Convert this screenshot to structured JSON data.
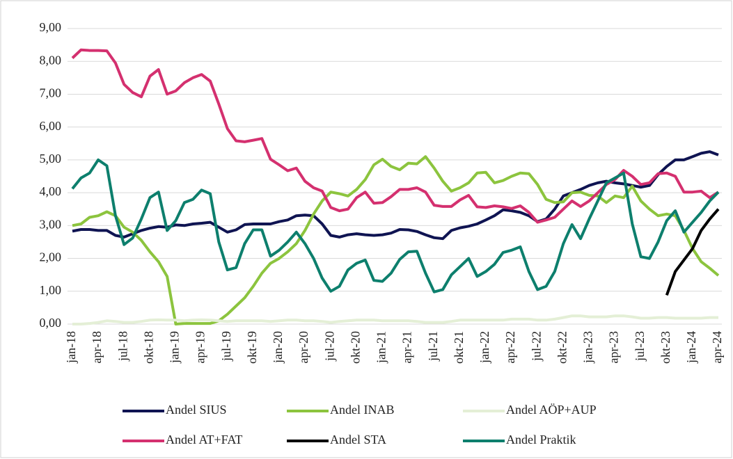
{
  "chart_data": {
    "type": "line",
    "categories": [
      "jan-18",
      null,
      null,
      "apr-18",
      null,
      null,
      "jul-18",
      null,
      null,
      "okt-18",
      null,
      null,
      "jan-19",
      null,
      null,
      "apr-19",
      null,
      null,
      "jul-19",
      null,
      null,
      "okt-19",
      null,
      null,
      "jan-20",
      null,
      null,
      "apr-20",
      null,
      null,
      "jul-20",
      null,
      null,
      "okt-20",
      null,
      null,
      "jan-21",
      null,
      null,
      "apr-21",
      null,
      null,
      "jul-21",
      null,
      null,
      "okt-21",
      null,
      null,
      "jan-22",
      null,
      null,
      "apr-22",
      null,
      null,
      "jul-22",
      null,
      null,
      "okt-22",
      null,
      null,
      "jan-23",
      null,
      null,
      "apr-23",
      null,
      null,
      "jul-23",
      null,
      null,
      "okt-23",
      null,
      null,
      "jan-24",
      null,
      null,
      "apr-24"
    ],
    "series": [
      {
        "name": "Andel SIUS",
        "color": "#0f1452",
        "values": [
          2.83,
          2.88,
          2.88,
          2.85,
          2.85,
          2.7,
          2.65,
          2.75,
          2.85,
          2.92,
          2.97,
          2.95,
          3.02,
          3.0,
          3.05,
          3.07,
          3.1,
          2.95,
          2.8,
          2.87,
          3.03,
          3.05,
          3.05,
          3.05,
          3.12,
          3.17,
          3.3,
          3.32,
          3.3,
          3.05,
          2.7,
          2.65,
          2.72,
          2.75,
          2.72,
          2.7,
          2.72,
          2.77,
          2.88,
          2.87,
          2.82,
          2.72,
          2.63,
          2.6,
          2.85,
          2.93,
          2.98,
          3.05,
          3.17,
          3.3,
          3.48,
          3.45,
          3.4,
          3.3,
          3.12,
          3.2,
          3.5,
          3.9,
          4.0,
          4.1,
          4.22,
          4.3,
          4.35,
          4.3,
          4.27,
          4.22,
          4.17,
          4.22,
          4.55,
          4.8,
          5.0,
          5.0,
          5.1,
          5.2,
          5.25,
          5.15
        ]
      },
      {
        "name": "Andel INAB",
        "color": "#8cc43e",
        "values": [
          3.0,
          3.05,
          3.25,
          3.3,
          3.42,
          3.3,
          2.95,
          2.8,
          2.55,
          2.2,
          1.9,
          1.45,
          0.0,
          0.02,
          0.02,
          0.02,
          0.02,
          0.1,
          0.3,
          0.55,
          0.8,
          1.15,
          1.55,
          1.85,
          2.0,
          2.2,
          2.45,
          2.85,
          3.35,
          3.75,
          4.02,
          3.97,
          3.9,
          4.1,
          4.4,
          4.85,
          5.02,
          4.8,
          4.7,
          4.9,
          4.88,
          5.1,
          4.75,
          4.35,
          4.05,
          4.15,
          4.3,
          4.6,
          4.62,
          4.3,
          4.37,
          4.5,
          4.6,
          4.58,
          4.25,
          3.8,
          3.7,
          3.72,
          4.0,
          4.02,
          3.92,
          3.9,
          3.7,
          3.9,
          3.85,
          4.2,
          3.75,
          3.5,
          3.3,
          3.35,
          3.3,
          2.85,
          2.3,
          1.9,
          1.7,
          1.48
        ]
      },
      {
        "name": "Andel AÖP+AUP",
        "color": "#e4efd6",
        "values": [
          0.0,
          0.0,
          0.02,
          0.05,
          0.1,
          0.08,
          0.05,
          0.05,
          0.08,
          0.12,
          0.13,
          0.12,
          0.12,
          0.1,
          0.12,
          0.13,
          0.12,
          0.1,
          0.08,
          0.1,
          0.1,
          0.1,
          0.1,
          0.08,
          0.1,
          0.12,
          0.12,
          0.1,
          0.1,
          0.08,
          0.05,
          0.08,
          0.1,
          0.12,
          0.12,
          0.12,
          0.1,
          0.1,
          0.1,
          0.1,
          0.08,
          0.05,
          0.05,
          0.05,
          0.08,
          0.12,
          0.12,
          0.12,
          0.12,
          0.12,
          0.12,
          0.15,
          0.15,
          0.15,
          0.12,
          0.12,
          0.15,
          0.2,
          0.25,
          0.25,
          0.22,
          0.22,
          0.22,
          0.25,
          0.25,
          0.22,
          0.18,
          0.18,
          0.2,
          0.2,
          0.18,
          0.18,
          0.18,
          0.18,
          0.2,
          0.2
        ]
      },
      {
        "name": "Andel AT+FAT",
        "color": "#d4306f",
        "values": [
          8.1,
          8.35,
          8.33,
          8.33,
          8.32,
          7.95,
          7.3,
          7.05,
          6.92,
          7.55,
          7.75,
          7.0,
          7.1,
          7.35,
          7.5,
          7.6,
          7.4,
          6.7,
          5.95,
          5.58,
          5.55,
          5.6,
          5.65,
          5.02,
          4.85,
          4.67,
          4.75,
          4.35,
          4.15,
          4.05,
          3.55,
          3.45,
          3.5,
          3.85,
          4.02,
          3.68,
          3.7,
          3.88,
          4.1,
          4.1,
          4.15,
          4.02,
          3.62,
          3.58,
          3.58,
          3.78,
          3.92,
          3.57,
          3.55,
          3.6,
          3.57,
          3.52,
          3.6,
          3.4,
          3.1,
          3.17,
          3.25,
          3.5,
          3.75,
          3.58,
          3.75,
          4.0,
          4.25,
          4.4,
          4.68,
          4.5,
          4.25,
          4.3,
          4.58,
          4.6,
          4.5,
          4.02,
          4.02,
          4.05,
          3.85,
          4.02
        ]
      },
      {
        "name": "Andel STA",
        "color": "#000000",
        "values": [
          null,
          null,
          null,
          null,
          null,
          null,
          null,
          null,
          null,
          null,
          null,
          null,
          null,
          null,
          null,
          null,
          null,
          null,
          null,
          null,
          null,
          null,
          null,
          null,
          null,
          null,
          null,
          null,
          null,
          null,
          null,
          null,
          null,
          null,
          null,
          null,
          null,
          null,
          null,
          null,
          null,
          null,
          null,
          null,
          null,
          null,
          null,
          null,
          null,
          null,
          null,
          null,
          null,
          null,
          null,
          null,
          null,
          null,
          null,
          null,
          null,
          null,
          null,
          null,
          null,
          null,
          null,
          null,
          null,
          0.88,
          1.6,
          1.95,
          2.3,
          2.85,
          3.2,
          3.5
        ]
      },
      {
        "name": "Andel Praktik",
        "color": "#0d7f6d",
        "values": [
          4.12,
          4.45,
          4.6,
          5.0,
          4.82,
          3.3,
          2.42,
          2.62,
          3.2,
          3.85,
          4.02,
          2.85,
          3.15,
          3.7,
          3.8,
          4.08,
          3.97,
          2.5,
          1.65,
          1.72,
          2.45,
          2.87,
          2.87,
          2.07,
          2.25,
          2.5,
          2.8,
          2.45,
          2.0,
          1.4,
          1.0,
          1.15,
          1.65,
          1.85,
          1.95,
          1.33,
          1.3,
          1.55,
          1.97,
          2.2,
          2.22,
          1.55,
          0.98,
          1.05,
          1.5,
          1.75,
          2.0,
          1.45,
          1.6,
          1.82,
          2.18,
          2.25,
          2.35,
          1.6,
          1.05,
          1.15,
          1.6,
          2.45,
          3.03,
          2.6,
          3.2,
          3.75,
          4.3,
          4.45,
          4.6,
          3.05,
          2.05,
          2.0,
          2.5,
          3.15,
          3.45,
          2.8,
          3.1,
          3.4,
          3.75,
          4.02
        ]
      }
    ],
    "ylim": [
      0,
      9
    ],
    "yticks": [
      {
        "value": 0,
        "label": "0,00"
      },
      {
        "value": 1,
        "label": "1,00"
      },
      {
        "value": 2,
        "label": "2,00"
      },
      {
        "value": 3,
        "label": "3,00"
      },
      {
        "value": 4,
        "label": "4,00"
      },
      {
        "value": 5,
        "label": "5,00"
      },
      {
        "value": 6,
        "label": "6,00"
      },
      {
        "value": 7,
        "label": "7,00"
      },
      {
        "value": 8,
        "label": "8,00"
      },
      {
        "value": 9,
        "label": "9,00"
      }
    ],
    "grid": true,
    "legend": "bottom"
  }
}
